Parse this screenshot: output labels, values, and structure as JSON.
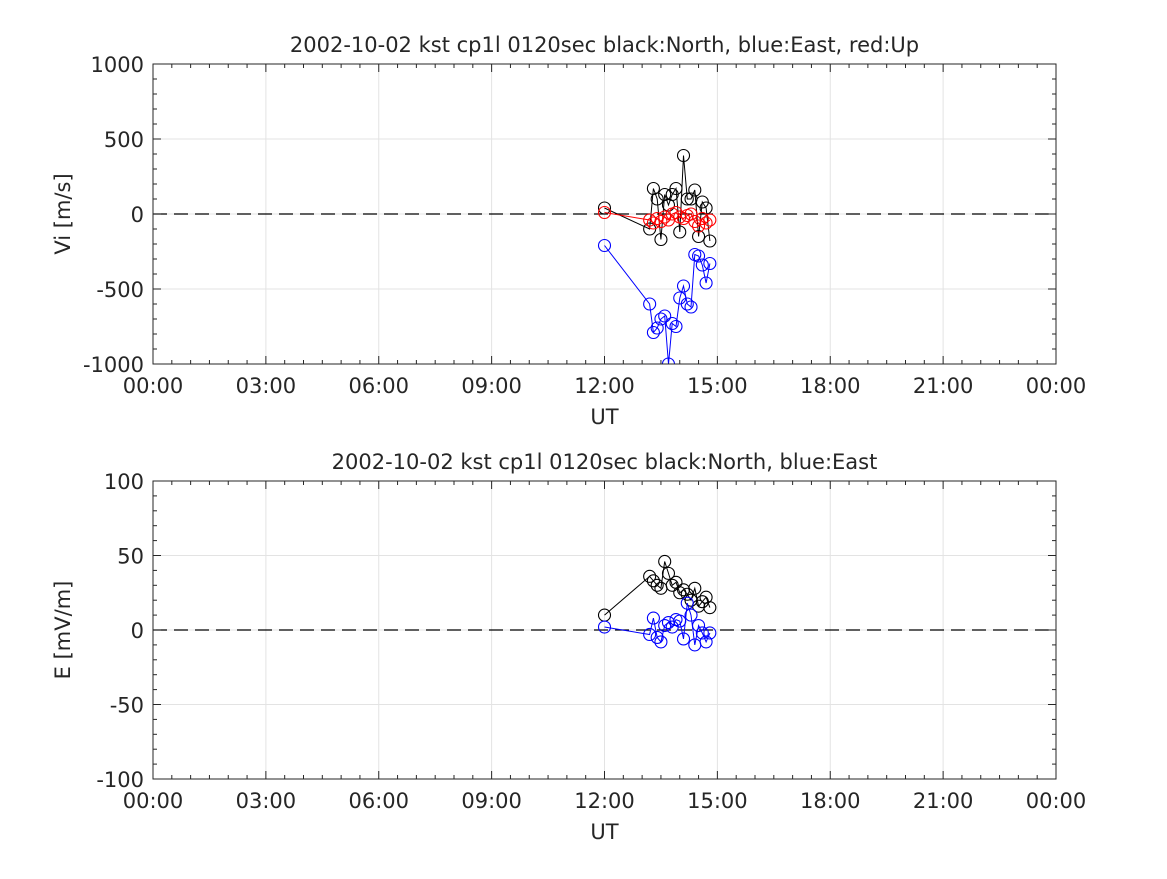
{
  "chart_data": [
    {
      "type": "line",
      "title": "2002-10-02 kst cp1l 0120sec black:North, blue:East, red:Up",
      "xlabel": "UT",
      "ylabel": "Vi [m/s]",
      "xlim": [
        0,
        24
      ],
      "ylim": [
        -1000,
        1000
      ],
      "xticks": [
        0,
        3,
        6,
        9,
        12,
        15,
        18,
        21,
        24
      ],
      "xtick_labels": [
        "00:00",
        "03:00",
        "06:00",
        "09:00",
        "12:00",
        "15:00",
        "18:00",
        "21:00",
        "00:00"
      ],
      "yticks": [
        1000,
        500,
        0,
        -500,
        -1000
      ],
      "ytick_labels": [
        "1000",
        "500",
        "0",
        "-500",
        "-1000"
      ],
      "grid": true,
      "zero_line": "dashed",
      "series": [
        {
          "name": "North",
          "color": "#000000",
          "x": [
            12.0,
            13.2,
            13.3,
            13.4,
            13.5,
            13.6,
            13.7,
            13.8,
            13.9,
            14.0,
            14.1,
            14.2,
            14.3,
            14.4,
            14.5,
            14.6,
            14.7,
            14.8
          ],
          "y": [
            40,
            -100,
            170,
            100,
            -170,
            130,
            60,
            130,
            170,
            -120,
            390,
            100,
            100,
            160,
            -150,
            80,
            40,
            -180
          ]
        },
        {
          "name": "East",
          "color": "#0000ff",
          "x": [
            12.0,
            13.2,
            13.3,
            13.4,
            13.5,
            13.6,
            13.7,
            13.8,
            13.9,
            14.0,
            14.1,
            14.2,
            14.3,
            14.4,
            14.5,
            14.6,
            14.7,
            14.8
          ],
          "y": [
            -210,
            -600,
            -790,
            -760,
            -700,
            -680,
            -1000,
            -730,
            -750,
            -560,
            -480,
            -600,
            -620,
            -270,
            -280,
            -340,
            -460,
            -330
          ]
        },
        {
          "name": "Up",
          "color": "#ff0000",
          "x": [
            12.0,
            13.2,
            13.3,
            13.4,
            13.5,
            13.6,
            13.7,
            13.8,
            13.9,
            14.0,
            14.1,
            14.2,
            14.3,
            14.4,
            14.5,
            14.6,
            14.7,
            14.8
          ],
          "y": [
            10,
            -40,
            -60,
            -30,
            -50,
            -20,
            -40,
            0,
            10,
            -20,
            -30,
            -10,
            0,
            -50,
            -80,
            -30,
            -60,
            -40
          ]
        }
      ]
    },
    {
      "type": "line",
      "title": "2002-10-02 kst cp1l 0120sec black:North, blue:East",
      "xlabel": "UT",
      "ylabel": "E [mV/m]",
      "xlim": [
        0,
        24
      ],
      "ylim": [
        -100,
        100
      ],
      "xticks": [
        0,
        3,
        6,
        9,
        12,
        15,
        18,
        21,
        24
      ],
      "xtick_labels": [
        "00:00",
        "03:00",
        "06:00",
        "09:00",
        "12:00",
        "15:00",
        "18:00",
        "21:00",
        "00:00"
      ],
      "yticks": [
        100,
        50,
        0,
        -50,
        -100
      ],
      "ytick_labels": [
        "100",
        "50",
        "0",
        "-50",
        "-100"
      ],
      "grid": true,
      "zero_line": "dashed",
      "series": [
        {
          "name": "North",
          "color": "#000000",
          "x": [
            12.0,
            13.2,
            13.3,
            13.4,
            13.5,
            13.6,
            13.7,
            13.8,
            13.9,
            14.0,
            14.1,
            14.2,
            14.3,
            14.4,
            14.5,
            14.6,
            14.7,
            14.8
          ],
          "y": [
            10,
            36,
            33,
            30,
            28,
            46,
            38,
            30,
            32,
            25,
            27,
            24,
            20,
            28,
            16,
            19,
            22,
            15
          ]
        },
        {
          "name": "East",
          "color": "#0000ff",
          "x": [
            12.0,
            13.2,
            13.3,
            13.4,
            13.5,
            13.6,
            13.7,
            13.8,
            13.9,
            14.0,
            14.1,
            14.2,
            14.3,
            14.4,
            14.5,
            14.6,
            14.7,
            14.8
          ],
          "y": [
            2,
            -3,
            8,
            -5,
            -8,
            3,
            5,
            2,
            7,
            6,
            -6,
            18,
            10,
            -10,
            3,
            -2,
            -8,
            -2
          ]
        }
      ]
    }
  ]
}
